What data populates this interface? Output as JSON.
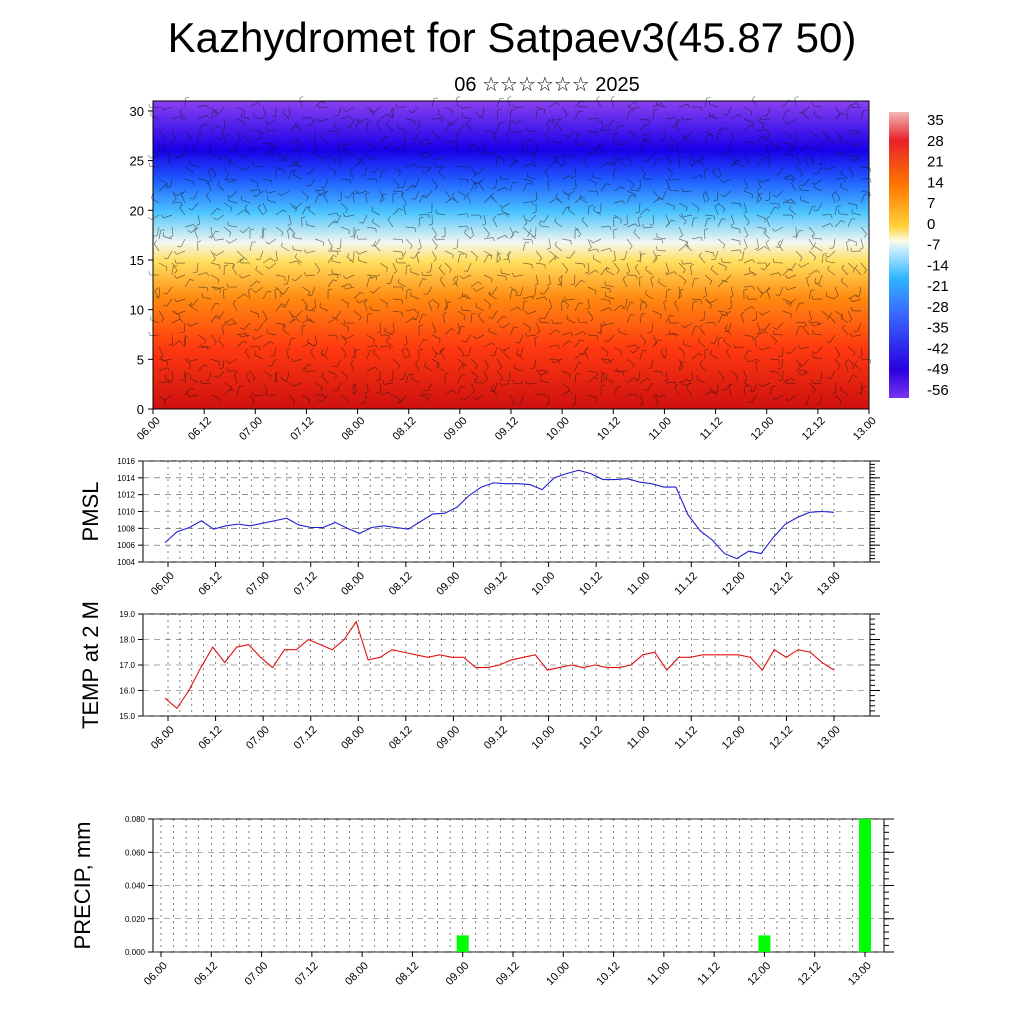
{
  "title": "Kazhydromet for Satpaev3(45.87 50)",
  "subtitle": "06 ☆☆☆☆☆☆ 2025",
  "colors": {
    "pmsl": "#1f1fd0",
    "temp": "#e01010",
    "precip": "#00ff00",
    "gradient": [
      "#f4b6b6",
      "#e8202a",
      "#ff7a00",
      "#ffd23a",
      "#fffbe0",
      "#c8ecff",
      "#2fb6ff",
      "#3a2bff",
      "#2800e0",
      "#7a33ee"
    ]
  },
  "chart_data": [
    {
      "type": "heatmap",
      "title": "",
      "x_ticks": [
        "06.00",
        "06.12",
        "07.00",
        "07.12",
        "08.00",
        "08.12",
        "09.00",
        "09.12",
        "10.00",
        "10.12",
        "11.00",
        "11.12",
        "12.00",
        "12.12",
        "13.00"
      ],
      "y_ticks": [
        "0",
        "5",
        "10",
        "15",
        "20",
        "25",
        "30"
      ],
      "ylim": [
        0,
        31
      ],
      "colorbar_labels": [
        "35",
        "28",
        "21",
        "14",
        "7",
        "0",
        "-7",
        "-14",
        "-21",
        "-28",
        "-35",
        "-42",
        "-49",
        "-56"
      ],
      "overlay": "wind barbs"
    },
    {
      "type": "line",
      "ylabel": "PMSL",
      "x_ticks": [
        "06.00",
        "06.12",
        "07.00",
        "07.12",
        "08.00",
        "08.12",
        "09.00",
        "09.12",
        "10.00",
        "10.12",
        "11.00",
        "11.12",
        "12.00",
        "12.12",
        "13.00"
      ],
      "y_ticks": [
        "1016",
        "1014",
        "1012",
        "1010",
        "1008",
        "1006",
        "1004"
      ],
      "ylim": [
        1004,
        1016
      ],
      "series": [
        {
          "values": [
            1006.3,
            1007.6,
            1008.1,
            1008.9,
            1007.9,
            1008.3,
            1008.5,
            1008.3,
            1008.6,
            1008.9,
            1009.2,
            1008.4,
            1008.1,
            1008.1,
            1008.7,
            1008.0,
            1007.4,
            1008.1,
            1008.3,
            1008.1,
            1007.9,
            1008.8,
            1009.7,
            1009.8,
            1010.5,
            1011.9,
            1012.9,
            1013.4,
            1013.3,
            1013.3,
            1013.2,
            1012.6,
            1014.0,
            1014.5,
            1014.9,
            1014.5,
            1013.8,
            1013.8,
            1013.9,
            1013.5,
            1013.3,
            1012.9,
            1012.9,
            1009.6,
            1007.7,
            1006.6,
            1005.0,
            1004.4,
            1005.3,
            1005.0,
            1006.9,
            1008.5,
            1009.3,
            1009.9,
            1010.0,
            1009.9
          ]
        }
      ]
    },
    {
      "type": "line",
      "ylabel": "TEMP at 2 M",
      "x_ticks": [
        "06.00",
        "06.12",
        "07.00",
        "07.12",
        "08.00",
        "08.12",
        "09.00",
        "09.12",
        "10.00",
        "10.12",
        "11.00",
        "11.12",
        "12.00",
        "12.12",
        "13.00"
      ],
      "y_ticks": [
        "19.0",
        "18.0",
        "17.0",
        "16.0",
        "15.0"
      ],
      "ylim": [
        15.0,
        19.0
      ],
      "series": [
        {
          "values": [
            15.7,
            15.3,
            16.0,
            16.9,
            17.7,
            17.1,
            17.7,
            17.8,
            17.3,
            16.9,
            17.6,
            17.6,
            18.0,
            17.8,
            17.6,
            18.0,
            18.7,
            17.2,
            17.3,
            17.6,
            17.5,
            17.4,
            17.3,
            17.4,
            17.3,
            17.3,
            16.9,
            16.9,
            17.0,
            17.2,
            17.3,
            17.4,
            16.8,
            16.9,
            17.0,
            16.9,
            17.0,
            16.9,
            16.9,
            17.0,
            17.4,
            17.5,
            16.8,
            17.3,
            17.3,
            17.4,
            17.4,
            17.4,
            17.4,
            17.3,
            16.8,
            17.6,
            17.3,
            17.6,
            17.5,
            17.1,
            16.8
          ]
        }
      ]
    },
    {
      "type": "bar",
      "ylabel": "PRECIP, mm",
      "x_ticks": [
        "06.00",
        "06.12",
        "07.00",
        "07.12",
        "08.00",
        "08.12",
        "09.00",
        "09.12",
        "10.00",
        "10.12",
        "11.00",
        "11.12",
        "12.00",
        "12.12",
        "13.00"
      ],
      "y_ticks": [
        "0.080",
        "0.060",
        "0.040",
        "0.020",
        "0.000"
      ],
      "ylim": [
        0,
        0.08
      ],
      "bars": [
        {
          "x": "09.00",
          "value": 0.01
        },
        {
          "x": "12.00",
          "value": 0.01
        },
        {
          "x": "13.00",
          "value": 0.08
        }
      ]
    }
  ]
}
